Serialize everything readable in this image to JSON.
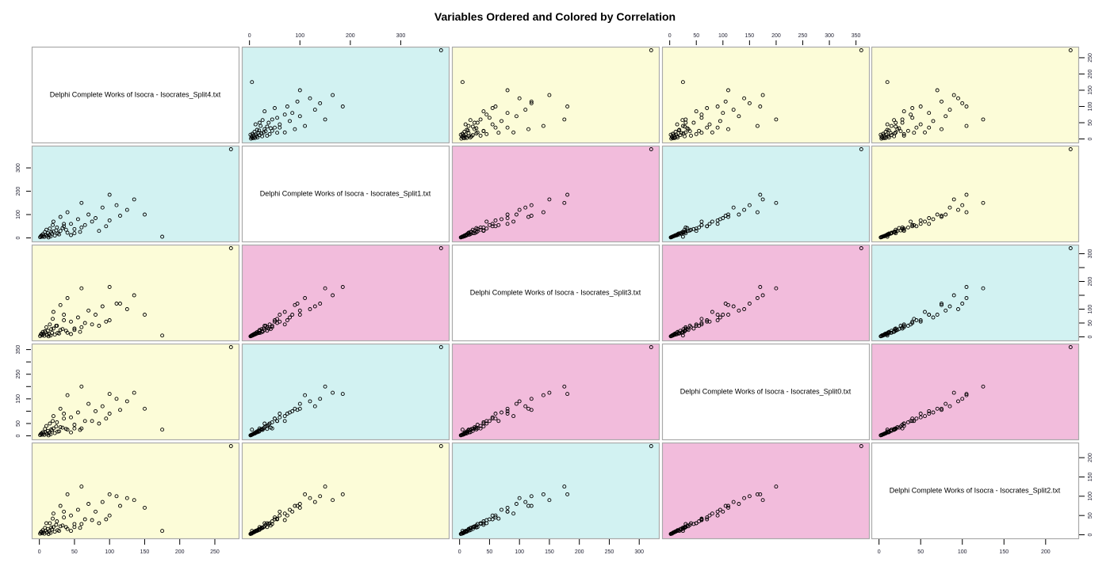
{
  "chart_data": {
    "type": "scatter",
    "subtype": "scatterplot-matrix",
    "title": "Variables Ordered and Colored by Correlation",
    "variables": [
      "Delphi Complete Works of Isocra - Isocrates_Split4.txt",
      "Delphi Complete Works of Isocra - Isocrates_Split1.txt",
      "Delphi Complete Works of Isocra - Isocrates_Split3.txt",
      "Delphi Complete Works of Isocra - Isocrates_Split0.txt",
      "Delphi Complete Works of Isocra - Isocrates_Split2.txt"
    ],
    "ranges": [
      [
        0,
        273
      ],
      [
        0,
        380
      ],
      [
        0,
        320
      ],
      [
        0,
        360
      ],
      [
        0,
        230
      ]
    ],
    "panel_colors": {
      "high": "#f2bcdc",
      "medium": "#d2f2f2",
      "low": "#fcfcd8",
      "diagonal": "#ffffff"
    },
    "panel_levels": [
      [
        "diagonal",
        "medium",
        "low",
        "low",
        "low"
      ],
      [
        "medium",
        "diagonal",
        "high",
        "medium",
        "low"
      ],
      [
        "low",
        "high",
        "diagonal",
        "high",
        "medium"
      ],
      [
        "low",
        "medium",
        "high",
        "diagonal",
        "high"
      ],
      [
        "low",
        "low",
        "medium",
        "high",
        "diagonal"
      ]
    ],
    "axes": [
      {
        "side": "bottom",
        "ticks": [
          0,
          50,
          100,
          150,
          200,
          250
        ],
        "labels": [
          "0",
          "50",
          "100",
          "150",
          "200",
          "250"
        ]
      },
      {
        "side": "top",
        "ticks": [
          0,
          100,
          200,
          300
        ],
        "labels": [
          "0",
          "100",
          "200",
          "300"
        ]
      },
      {
        "side": "bottom",
        "ticks": [
          0,
          50,
          100,
          150,
          200,
          250,
          300
        ],
        "labels": [
          "0",
          "50",
          "100",
          "150",
          "200",
          "250",
          "300"
        ]
      },
      {
        "side": "top",
        "ticks": [
          0,
          50,
          100,
          150,
          200,
          250,
          300,
          350
        ],
        "labels": [
          "0",
          "50",
          "100",
          "150",
          "200",
          "250",
          "300",
          "350"
        ]
      },
      {
        "side": "bottom",
        "ticks": [
          0,
          50,
          100,
          150,
          200
        ],
        "labels": [
          "0",
          "50",
          "100",
          "150",
          "200"
        ]
      }
    ],
    "row_axes": [
      {
        "side": "right",
        "ticks": [
          0,
          50,
          100,
          150,
          200,
          250
        ],
        "labels": [
          "0",
          "50",
          "100",
          "150",
          "200",
          "250"
        ]
      },
      {
        "side": "left",
        "ticks": [
          0,
          100,
          200,
          300
        ],
        "labels": [
          "0",
          "100",
          "200",
          "300"
        ]
      },
      {
        "side": "right",
        "ticks": [
          0,
          50,
          100,
          150,
          200,
          250,
          300
        ],
        "labels": [
          "0",
          "50",
          "100",
          "",
          "200",
          "",
          "300"
        ]
      },
      {
        "side": "left",
        "ticks": [
          0,
          50,
          100,
          150,
          200,
          250,
          300,
          350
        ],
        "labels": [
          "0",
          "50",
          "",
          "150",
          "",
          "250",
          "",
          "350"
        ]
      },
      {
        "side": "right",
        "ticks": [
          0,
          50,
          100,
          150,
          200
        ],
        "labels": [
          "0",
          "50",
          "100",
          "150",
          "200"
        ]
      }
    ],
    "observations": [
      [
        273,
        380,
        320,
        360,
        230
      ],
      [
        175,
        5,
        5,
        25,
        10
      ],
      [
        100,
        185,
        180,
        170,
        105
      ],
      [
        135,
        165,
        150,
        175,
        90
      ],
      [
        60,
        150,
        175,
        200,
        125
      ],
      [
        110,
        140,
        120,
        150,
        100
      ],
      [
        90,
        130,
        110,
        120,
        85
      ],
      [
        125,
        120,
        100,
        140,
        95
      ],
      [
        40,
        110,
        140,
        165,
        105
      ],
      [
        70,
        100,
        95,
        130,
        80
      ],
      [
        30,
        90,
        115,
        110,
        75
      ],
      [
        80,
        85,
        80,
        100,
        60
      ],
      [
        55,
        80,
        70,
        95,
        65
      ],
      [
        100,
        75,
        60,
        90,
        50
      ],
      [
        20,
        70,
        90,
        80,
        55
      ],
      [
        45,
        60,
        55,
        75,
        50
      ],
      [
        65,
        55,
        50,
        60,
        40
      ],
      [
        35,
        50,
        60,
        70,
        45
      ],
      [
        25,
        45,
        40,
        55,
        35
      ],
      [
        15,
        40,
        45,
        50,
        30
      ],
      [
        50,
        38,
        30,
        45,
        28
      ],
      [
        10,
        35,
        35,
        40,
        30
      ],
      [
        30,
        30,
        25,
        35,
        22
      ],
      [
        20,
        28,
        30,
        30,
        20
      ],
      [
        8,
        25,
        20,
        28,
        18
      ],
      [
        40,
        22,
        15,
        25,
        15
      ],
      [
        12,
        20,
        22,
        20,
        15
      ],
      [
        18,
        18,
        15,
        22,
        14
      ],
      [
        5,
        16,
        18,
        15,
        12
      ],
      [
        28,
        15,
        12,
        18,
        10
      ],
      [
        9,
        14,
        16,
        14,
        11
      ],
      [
        14,
        12,
        10,
        12,
        9
      ],
      [
        3,
        11,
        12,
        10,
        8
      ],
      [
        22,
        10,
        8,
        11,
        8
      ],
      [
        6,
        9,
        10,
        9,
        7
      ],
      [
        11,
        8,
        7,
        8,
        6
      ],
      [
        2,
        7,
        8,
        7,
        6
      ],
      [
        16,
        6,
        5,
        6,
        5
      ],
      [
        4,
        5,
        6,
        5,
        4
      ],
      [
        7,
        4,
        4,
        4,
        3
      ],
      [
        1,
        3,
        3,
        3,
        3
      ],
      [
        13,
        2,
        2,
        2,
        2
      ],
      [
        60,
        45,
        35,
        30,
        28
      ],
      [
        85,
        30,
        40,
        50,
        30
      ],
      [
        50,
        20,
        25,
        30,
        20
      ],
      [
        35,
        60,
        80,
        90,
        60
      ],
      [
        75,
        70,
        45,
        60,
        38
      ],
      [
        24,
        32,
        40,
        38,
        26
      ],
      [
        45,
        12,
        10,
        14,
        10
      ],
      [
        33,
        42,
        28,
        33,
        24
      ],
      [
        19,
        55,
        65,
        60,
        42
      ],
      [
        58,
        26,
        18,
        24,
        18
      ],
      [
        95,
        50,
        55,
        70,
        40
      ],
      [
        150,
        100,
        80,
        110,
        70
      ],
      [
        115,
        95,
        120,
        105,
        75
      ],
      [
        17,
        24,
        28,
        26,
        19
      ],
      [
        26,
        19,
        14,
        17,
        12
      ],
      [
        38,
        35,
        22,
        28,
        20
      ]
    ]
  }
}
